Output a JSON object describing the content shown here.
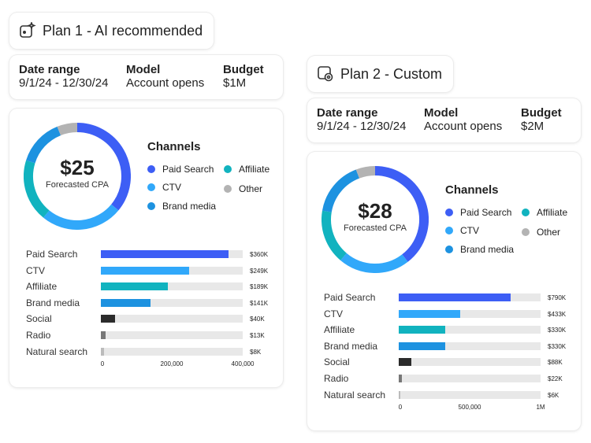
{
  "plans": [
    {
      "title": "Plan 1 - AI recommended",
      "icon": "ai-sparkle-icon",
      "info": {
        "date_label": "Date range",
        "date_value": "9/1/24 - 12/30/24",
        "model_label": "Model",
        "model_value": "Account opens",
        "budget_label": "Budget",
        "budget_value": "$1M"
      },
      "cpa_value": "$25",
      "cpa_label": "Forecasted CPA",
      "legend_title": "Channels",
      "legend": [
        {
          "label": "Paid Search",
          "color": "#3d5ef5"
        },
        {
          "label": "CTV",
          "color": "#31a8fa"
        },
        {
          "label": "Brand media",
          "color": "#1d92e0"
        },
        {
          "label": "Affiliate",
          "color": "#11b3bf"
        },
        {
          "label": "Other",
          "color": "#b3b3b3"
        }
      ],
      "chart_data": {
        "type": "bar",
        "categories": [
          "Paid Search",
          "CTV",
          "Affiliate",
          "Brand media",
          "Social",
          "Radio",
          "Natural search"
        ],
        "values": [
          360000,
          249000,
          189000,
          141000,
          40000,
          13000,
          8000
        ],
        "value_labels": [
          "$360K",
          "$249K",
          "$189K",
          "$141K",
          "$40K",
          "$13K",
          "$8K"
        ],
        "colors": [
          "#3d5ef5",
          "#31a8fa",
          "#11b3bf",
          "#1d92e0",
          "#2b2b2b",
          "#777777",
          "#bbbbbb"
        ],
        "xlim": [
          0,
          400000
        ],
        "ticks": [
          {
            "value": 0,
            "label": "0"
          },
          {
            "value": 200000,
            "label": "200,000"
          },
          {
            "value": 400000,
            "label": "400,000"
          }
        ]
      },
      "donut_data": {
        "order": [
          "Paid Search",
          "CTV",
          "Affiliate",
          "Brand media",
          "Other"
        ],
        "values": [
          360,
          249,
          189,
          141,
          61
        ],
        "colors": [
          "#3d5ef5",
          "#31a8fa",
          "#11b3bf",
          "#1d92e0",
          "#b3b3b3"
        ]
      }
    },
    {
      "title": "Plan 2 - Custom",
      "icon": "custom-settings-icon",
      "info": {
        "date_label": "Date range",
        "date_value": "9/1/24 - 12/30/24",
        "model_label": "Model",
        "model_value": "Account opens",
        "budget_label": "Budget",
        "budget_value": "$2M"
      },
      "cpa_value": "$28",
      "cpa_label": "Forecasted CPA",
      "legend_title": "Channels",
      "legend": [
        {
          "label": "Paid Search",
          "color": "#3d5ef5"
        },
        {
          "label": "CTV",
          "color": "#31a8fa"
        },
        {
          "label": "Brand media",
          "color": "#1d92e0"
        },
        {
          "label": "Affiliate",
          "color": "#11b3bf"
        },
        {
          "label": "Other",
          "color": "#b3b3b3"
        }
      ],
      "chart_data": {
        "type": "bar",
        "categories": [
          "Paid Search",
          "CTV",
          "Affiliate",
          "Brand media",
          "Social",
          "Radio",
          "Natural search"
        ],
        "values": [
          790000,
          433000,
          330000,
          330000,
          88000,
          22000,
          6000
        ],
        "value_labels": [
          "$790K",
          "$433K",
          "$330K",
          "$330K",
          "$88K",
          "$22K",
          "$6K"
        ],
        "colors": [
          "#3d5ef5",
          "#31a8fa",
          "#11b3bf",
          "#1d92e0",
          "#2b2b2b",
          "#777777",
          "#bbbbbb"
        ],
        "xlim": [
          0,
          1000000
        ],
        "ticks": [
          {
            "value": 0,
            "label": "0"
          },
          {
            "value": 500000,
            "label": "500,000"
          },
          {
            "value": 1000000,
            "label": "1M"
          }
        ]
      },
      "donut_data": {
        "order": [
          "Paid Search",
          "CTV",
          "Affiliate",
          "Brand media",
          "Other"
        ],
        "values": [
          790,
          433,
          330,
          330,
          116
        ],
        "colors": [
          "#3d5ef5",
          "#31a8fa",
          "#11b3bf",
          "#1d92e0",
          "#b3b3b3"
        ]
      }
    }
  ]
}
